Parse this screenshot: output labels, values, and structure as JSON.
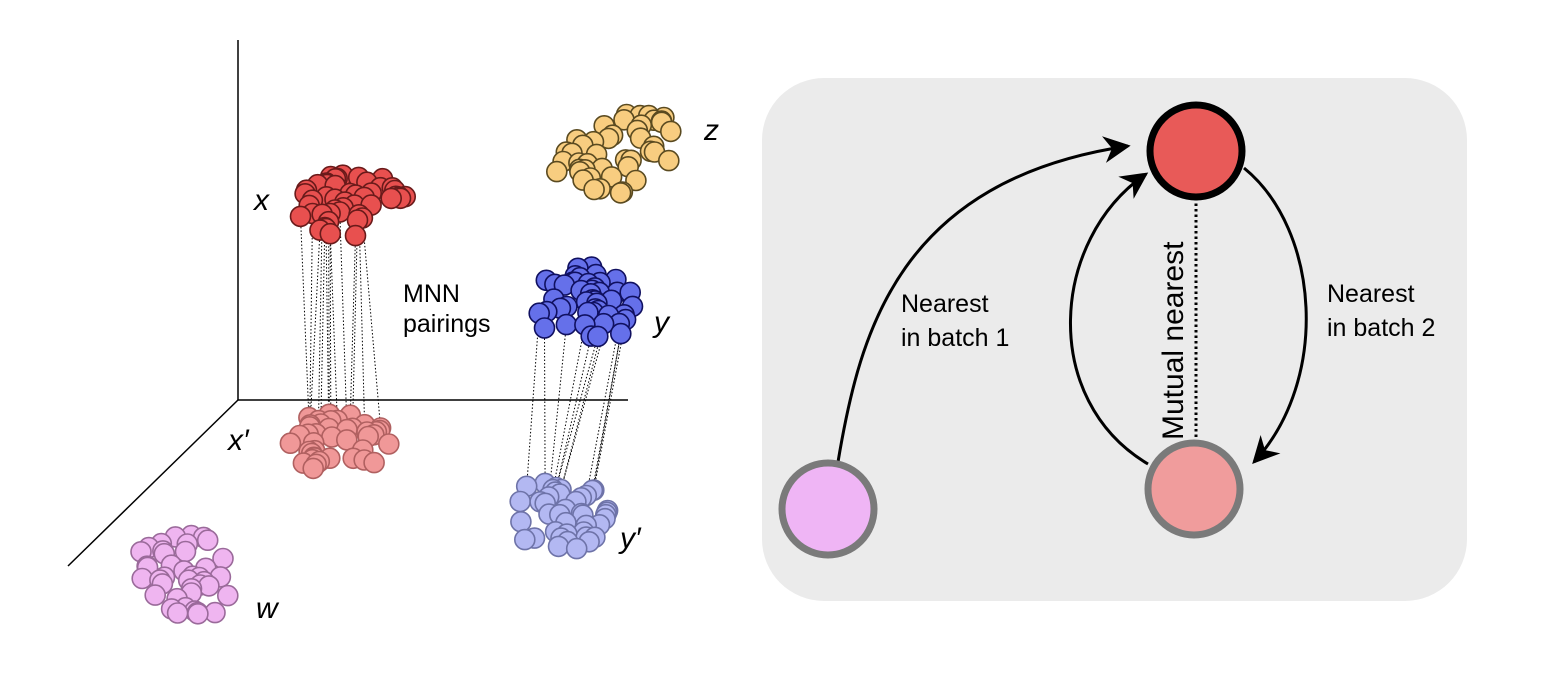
{
  "left_panel": {
    "cluster_labels": {
      "x": "x",
      "x_prime": "x′",
      "y": "y",
      "y_prime": "y′",
      "z": "z",
      "w": "w"
    },
    "mnn_label_line1": "MNN",
    "mnn_label_line2": "pairings"
  },
  "right_panel": {
    "nearest_batch1_line1": "Nearest",
    "nearest_batch1_line2": "in batch 1",
    "nearest_batch2_line1": "Nearest",
    "nearest_batch2_line2": "in batch 2",
    "mutual_nearest": "Mutual nearest"
  },
  "colors": {
    "x": "#e8504f",
    "x_prime": "#f09898",
    "y": "#6570ea",
    "y_prime": "#b3b8f2",
    "z": "#f8cd80",
    "w": "#efb5f0",
    "panel_bg": "#ebebeb",
    "node_top": "#e85a58",
    "node_bottom": "#f09c9c",
    "node_left": "#efb5f5"
  }
}
